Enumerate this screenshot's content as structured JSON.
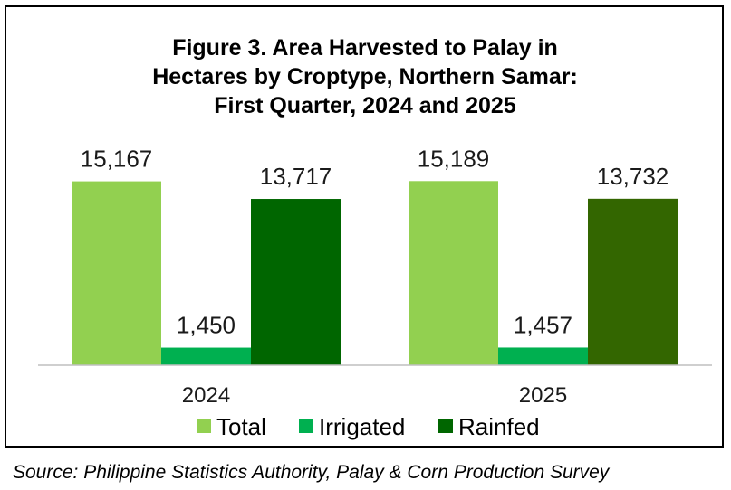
{
  "chart_data": {
    "type": "bar",
    "title_lines": [
      "Figure 3. Area Harvested to Palay in",
      "Hectares by Croptype, Northern Samar:",
      "First Quarter, 2024 and 2025"
    ],
    "categories": [
      "2024",
      "2025"
    ],
    "series": [
      {
        "name": "Total",
        "values": [
          15167,
          15189
        ],
        "labels": [
          "15,167",
          "15,189"
        ],
        "color": "#92d050"
      },
      {
        "name": "Irrigated",
        "values": [
          1450,
          1457
        ],
        "labels": [
          "1,450",
          "1,457"
        ],
        "color": "#00b050"
      },
      {
        "name": "Rainfed",
        "values": [
          13717,
          13732
        ],
        "labels": [
          "13,717",
          "13,732"
        ],
        "color": "#006600",
        "color_2025": "#336600"
      }
    ],
    "xlabel": "",
    "ylabel": "",
    "ylim": [
      0,
      17000
    ],
    "grid": false,
    "legend_position": "bottom"
  },
  "source": "Source: Philippine Statistics Authority, Palay & Corn Production Survey"
}
